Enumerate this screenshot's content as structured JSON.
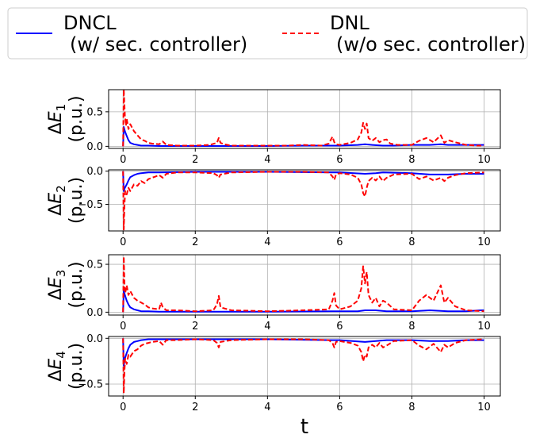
{
  "colors": {
    "dncl": "#0000ff",
    "dnl": "#ff0000",
    "grid": "#b0b0b0",
    "axis": "#000000"
  },
  "legend": {
    "items": [
      {
        "label_line1": "DNCL",
        "label_line2": "(w/ sec. controller)",
        "style": "solid",
        "color": "#0000ff"
      },
      {
        "label_line1": "DNL",
        "label_line2": "(w/o sec. controller)",
        "style": "dashed",
        "color": "#ff0000"
      }
    ]
  },
  "xlabel": "t",
  "chart_data": [
    {
      "type": "line",
      "ylabel_var": "E",
      "ylabel_sub": "1",
      "ylabel_prefix": "Δ",
      "ylabel_unit": "(p.u.)",
      "xlim": [
        -0.4,
        10.45
      ],
      "ylim": [
        -0.03,
        0.82
      ],
      "xticks": [
        0,
        2,
        4,
        6,
        8,
        10
      ],
      "yticks": [
        0.0,
        0.5
      ],
      "ytick_labels": [
        "0.0",
        "0.5"
      ],
      "grid": true,
      "series": [
        {
          "name": "DNCL",
          "x": [
            0,
            0.02,
            0.05,
            0.1,
            0.15,
            0.2,
            0.3,
            0.4,
            0.5,
            0.7,
            1.0,
            2.0,
            3.0,
            4.0,
            5.0,
            5.8,
            6.0,
            6.5,
            6.7,
            6.9,
            7.2,
            7.5,
            8.0,
            8.5,
            8.8,
            9.0,
            9.5,
            9.9,
            10
          ],
          "y": [
            0.0,
            0.28,
            0.22,
            0.15,
            0.09,
            0.05,
            0.03,
            0.02,
            0.01,
            0.01,
            0.005,
            0.005,
            0.005,
            0.005,
            0.01,
            0.01,
            0.01,
            0.02,
            0.03,
            0.02,
            0.01,
            0.01,
            0.02,
            0.02,
            0.03,
            0.02,
            0.02,
            0.02,
            0.02
          ]
        },
        {
          "name": "DNL",
          "x": [
            0,
            0.02,
            0.05,
            0.08,
            0.1,
            0.15,
            0.2,
            0.3,
            0.4,
            0.5,
            0.6,
            0.7,
            0.8,
            1.0,
            1.1,
            1.2,
            1.5,
            2.0,
            2.4,
            2.6,
            2.65,
            2.7,
            2.8,
            3.0,
            3.5,
            4.0,
            4.5,
            5.0,
            5.5,
            5.7,
            5.8,
            5.85,
            5.9,
            6.0,
            6.3,
            6.5,
            6.6,
            6.65,
            6.7,
            6.75,
            6.8,
            6.9,
            7.0,
            7.1,
            7.2,
            7.3,
            7.4,
            7.6,
            8.0,
            8.2,
            8.4,
            8.6,
            8.8,
            8.9,
            9.0,
            9.2,
            9.5,
            9.8,
            10
          ],
          "y": [
            0.0,
            0.82,
            0.45,
            0.3,
            0.4,
            0.25,
            0.32,
            0.22,
            0.16,
            0.1,
            0.08,
            0.05,
            0.04,
            0.03,
            0.07,
            0.02,
            0.01,
            0.01,
            0.02,
            0.05,
            0.12,
            0.05,
            0.03,
            0.01,
            0.01,
            0.01,
            0.01,
            0.02,
            0.01,
            0.04,
            0.14,
            0.06,
            0.03,
            0.02,
            0.05,
            0.1,
            0.2,
            0.34,
            0.25,
            0.33,
            0.12,
            0.08,
            0.12,
            0.06,
            0.09,
            0.1,
            0.04,
            0.02,
            0.02,
            0.08,
            0.12,
            0.06,
            0.16,
            0.05,
            0.09,
            0.06,
            0.02,
            0.01,
            0.01
          ]
        }
      ]
    },
    {
      "type": "line",
      "ylabel_var": "E",
      "ylabel_sub": "2",
      "ylabel_prefix": "Δ",
      "ylabel_unit": "(p.u.)",
      "xlim": [
        -0.4,
        10.45
      ],
      "ylim": [
        -0.9,
        0.02
      ],
      "xticks": [
        0,
        2,
        4,
        6,
        8,
        10
      ],
      "yticks": [
        0.0,
        -0.5
      ],
      "ytick_labels": [
        "0.0",
        "−0.5"
      ],
      "grid": true,
      "series": [
        {
          "name": "DNCL",
          "x": [
            0,
            0.02,
            0.05,
            0.1,
            0.15,
            0.2,
            0.3,
            0.4,
            0.5,
            0.7,
            1.0,
            2.0,
            4.0,
            5.8,
            6.0,
            6.7,
            7.0,
            7.2,
            8.0,
            8.5,
            9.0,
            9.5,
            10
          ],
          "y": [
            0.0,
            -0.3,
            -0.25,
            -0.2,
            -0.14,
            -0.09,
            -0.06,
            -0.04,
            -0.03,
            -0.02,
            -0.02,
            -0.01,
            -0.01,
            -0.02,
            -0.02,
            -0.04,
            -0.03,
            -0.02,
            -0.03,
            -0.05,
            -0.05,
            -0.04,
            -0.04
          ]
        },
        {
          "name": "DNL",
          "x": [
            0,
            0.02,
            0.04,
            0.06,
            0.1,
            0.15,
            0.2,
            0.3,
            0.4,
            0.5,
            0.6,
            0.7,
            0.8,
            0.9,
            1.0,
            1.1,
            1.2,
            1.5,
            2.0,
            2.5,
            2.6,
            2.65,
            2.7,
            3.0,
            4.0,
            5.0,
            5.7,
            5.8,
            5.85,
            5.9,
            6.0,
            6.3,
            6.5,
            6.6,
            6.65,
            6.7,
            6.75,
            6.8,
            6.9,
            7.0,
            7.1,
            7.2,
            7.3,
            7.5,
            8.0,
            8.2,
            8.4,
            8.6,
            8.8,
            8.9,
            9.0,
            9.2,
            9.5,
            10
          ],
          "y": [
            0.0,
            -0.88,
            -0.5,
            -0.3,
            -0.35,
            -0.25,
            -0.3,
            -0.2,
            -0.22,
            -0.15,
            -0.18,
            -0.12,
            -0.1,
            -0.08,
            -0.06,
            -0.1,
            -0.04,
            -0.02,
            -0.02,
            -0.03,
            -0.06,
            -0.1,
            -0.05,
            -0.02,
            -0.01,
            -0.01,
            -0.02,
            -0.08,
            -0.13,
            -0.05,
            -0.03,
            -0.05,
            -0.1,
            -0.2,
            -0.33,
            -0.38,
            -0.25,
            -0.15,
            -0.1,
            -0.14,
            -0.08,
            -0.15,
            -0.1,
            -0.05,
            -0.04,
            -0.12,
            -0.08,
            -0.14,
            -0.1,
            -0.15,
            -0.1,
            -0.06,
            -0.03,
            -0.02
          ]
        }
      ]
    },
    {
      "type": "line",
      "ylabel_var": "E",
      "ylabel_sub": "3",
      "ylabel_prefix": "Δ",
      "ylabel_unit": "(p.u.)",
      "xlim": [
        -0.4,
        10.45
      ],
      "ylim": [
        -0.03,
        0.6
      ],
      "xticks": [
        0,
        2,
        4,
        6,
        8,
        10
      ],
      "yticks": [
        0.0,
        0.5
      ],
      "ytick_labels": [
        "0.0",
        "0.5"
      ],
      "grid": true,
      "series": [
        {
          "name": "DNCL",
          "x": [
            0,
            0.02,
            0.05,
            0.1,
            0.15,
            0.2,
            0.3,
            0.4,
            0.5,
            0.7,
            1.0,
            2.0,
            4.0,
            5.8,
            6.0,
            6.5,
            6.7,
            7.0,
            7.3,
            8.0,
            8.5,
            9.0,
            9.5,
            9.9,
            10
          ],
          "y": [
            0.0,
            0.22,
            0.18,
            0.12,
            0.08,
            0.05,
            0.03,
            0.02,
            0.01,
            0.01,
            0.005,
            0.005,
            0.005,
            0.01,
            0.01,
            0.01,
            0.02,
            0.02,
            0.01,
            0.01,
            0.02,
            0.01,
            0.01,
            0.02,
            0.02
          ]
        },
        {
          "name": "DNL",
          "x": [
            0,
            0.02,
            0.04,
            0.06,
            0.1,
            0.15,
            0.2,
            0.3,
            0.4,
            0.5,
            0.6,
            0.7,
            0.8,
            1.0,
            1.05,
            1.1,
            1.2,
            1.5,
            2.0,
            2.5,
            2.6,
            2.65,
            2.7,
            3.0,
            4.0,
            5.0,
            5.7,
            5.8,
            5.85,
            5.9,
            6.0,
            6.3,
            6.5,
            6.6,
            6.65,
            6.7,
            6.75,
            6.8,
            6.9,
            7.0,
            7.1,
            7.2,
            7.3,
            7.5,
            8.0,
            8.2,
            8.4,
            8.6,
            8.8,
            8.9,
            9.0,
            9.2,
            9.5,
            10
          ],
          "y": [
            0.0,
            0.58,
            0.3,
            0.2,
            0.28,
            0.18,
            0.22,
            0.15,
            0.12,
            0.1,
            0.08,
            0.05,
            0.04,
            0.03,
            0.1,
            0.05,
            0.02,
            0.02,
            0.01,
            0.02,
            0.08,
            0.17,
            0.05,
            0.02,
            0.01,
            0.02,
            0.03,
            0.12,
            0.2,
            0.07,
            0.03,
            0.06,
            0.12,
            0.25,
            0.48,
            0.3,
            0.42,
            0.18,
            0.1,
            0.15,
            0.06,
            0.12,
            0.1,
            0.03,
            0.02,
            0.12,
            0.18,
            0.12,
            0.28,
            0.1,
            0.15,
            0.06,
            0.02,
            0.01
          ]
        }
      ]
    },
    {
      "type": "line",
      "ylabel_var": "E",
      "ylabel_sub": "4",
      "ylabel_prefix": "Δ",
      "ylabel_unit": "(p.u.)",
      "xlim": [
        -0.4,
        10.45
      ],
      "ylim": [
        -0.63,
        0.02
      ],
      "xticks": [
        0,
        2,
        4,
        6,
        8,
        10
      ],
      "yticks": [
        0.0,
        -0.5
      ],
      "ytick_labels": [
        "0.0",
        "−0.5"
      ],
      "grid": true,
      "series": [
        {
          "name": "DNCL",
          "x": [
            0,
            0.02,
            0.05,
            0.1,
            0.15,
            0.2,
            0.3,
            0.4,
            0.5,
            0.7,
            1.0,
            2.0,
            4.0,
            5.8,
            6.0,
            6.7,
            7.0,
            7.3,
            8.0,
            8.5,
            9.0,
            9.5,
            10
          ],
          "y": [
            0.0,
            -0.3,
            -0.22,
            -0.16,
            -0.11,
            -0.07,
            -0.04,
            -0.03,
            -0.02,
            -0.01,
            -0.01,
            -0.01,
            -0.01,
            -0.02,
            -0.02,
            -0.04,
            -0.03,
            -0.02,
            -0.02,
            -0.03,
            -0.03,
            -0.02,
            -0.02
          ]
        },
        {
          "name": "DNL",
          "x": [
            0,
            0.02,
            0.04,
            0.06,
            0.1,
            0.15,
            0.2,
            0.3,
            0.4,
            0.5,
            0.6,
            0.7,
            0.8,
            1.0,
            1.1,
            1.2,
            1.5,
            2.0,
            2.5,
            2.6,
            2.65,
            2.7,
            3.0,
            4.0,
            5.0,
            5.7,
            5.8,
            5.85,
            5.9,
            6.0,
            6.3,
            6.5,
            6.6,
            6.65,
            6.7,
            6.75,
            6.8,
            6.9,
            7.0,
            7.1,
            7.2,
            7.3,
            7.5,
            8.0,
            8.2,
            8.4,
            8.6,
            8.8,
            8.9,
            9.0,
            9.2,
            9.5,
            10
          ],
          "y": [
            0.0,
            -0.6,
            -0.35,
            -0.22,
            -0.28,
            -0.18,
            -0.2,
            -0.14,
            -0.12,
            -0.08,
            -0.06,
            -0.05,
            -0.04,
            -0.03,
            -0.07,
            -0.02,
            -0.02,
            -0.01,
            -0.02,
            -0.05,
            -0.1,
            -0.04,
            -0.02,
            -0.01,
            -0.01,
            -0.02,
            -0.05,
            -0.1,
            -0.04,
            -0.03,
            -0.05,
            -0.08,
            -0.15,
            -0.25,
            -0.18,
            -0.2,
            -0.1,
            -0.07,
            -0.1,
            -0.05,
            -0.1,
            -0.08,
            -0.03,
            -0.02,
            -0.08,
            -0.12,
            -0.06,
            -0.15,
            -0.07,
            -0.1,
            -0.05,
            -0.02,
            -0.01
          ]
        }
      ]
    }
  ]
}
